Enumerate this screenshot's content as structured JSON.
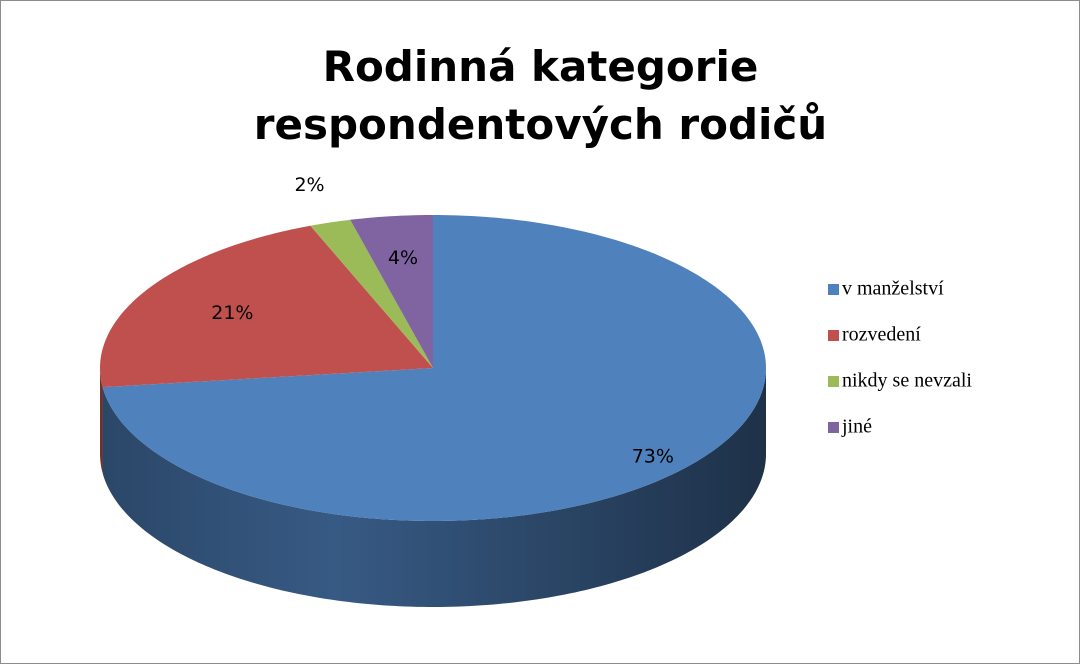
{
  "chart_data": {
    "type": "pie3d",
    "title": "Rodinná kategorie respondentových rodičů",
    "categories": [
      "v manželství",
      "rozvedení",
      "nikdy se nevzali",
      "jiné"
    ],
    "values": [
      73,
      21,
      2,
      4
    ],
    "value_labels": [
      "73%",
      "21%",
      "2%",
      "4%"
    ],
    "colors": [
      "#4f81bd",
      "#c0504d",
      "#9bbb59",
      "#8064a2"
    ],
    "legend": "right"
  }
}
